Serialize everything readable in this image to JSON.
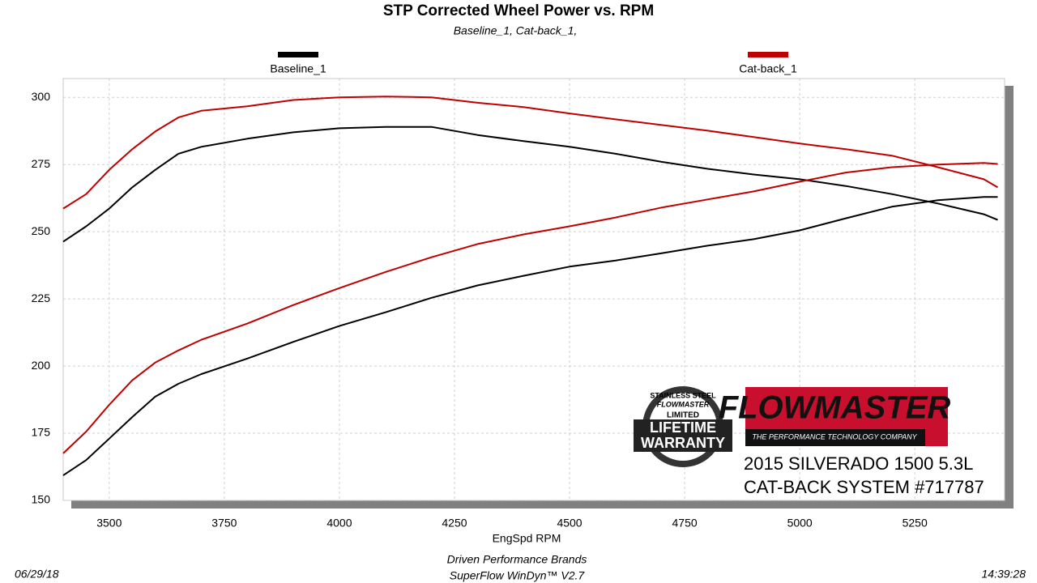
{
  "chart_data": {
    "type": "line",
    "title": "STP Corrected Wheel Power vs. RPM",
    "subtitle": "Baseline_1, Cat-back_1,",
    "x_label": "EngSpd  RPM",
    "x": [
      3400,
      3450,
      3500,
      3550,
      3600,
      3650,
      3700,
      3800,
      3900,
      4000,
      4100,
      4200,
      4300,
      4400,
      4500,
      4600,
      4700,
      4800,
      4900,
      5000,
      5100,
      5200,
      5300,
      5400,
      5430
    ],
    "series": [
      {
        "name": "Baseline_1",
        "color": "#000000",
        "curves": [
          [
            246.3,
            252,
            258.6,
            266.5,
            273,
            279,
            281.6,
            284.6,
            287,
            288.5,
            289,
            289,
            286,
            283.7,
            281.6,
            279,
            276,
            273.4,
            271.3,
            269.5,
            267,
            264,
            260.5,
            256.5,
            254.4
          ],
          [
            159.3,
            165,
            173,
            181,
            188.6,
            193.4,
            197,
            202.8,
            209,
            214.9,
            220,
            225.4,
            230,
            233.6,
            237,
            239.3,
            242,
            244.8,
            247.2,
            250.5,
            255,
            259.3,
            261.7,
            262.9,
            262.9
          ]
        ]
      },
      {
        "name": "Cat-back_1",
        "color": "#c00000",
        "curves": [
          [
            258.6,
            264,
            273,
            280.7,
            287.3,
            292.5,
            295,
            296.7,
            299,
            300,
            300.3,
            300,
            298,
            296.4,
            294,
            291.8,
            289.7,
            287.6,
            285.2,
            282.8,
            280.7,
            278.3,
            274,
            269.5,
            266.5
          ],
          [
            167.5,
            175.6,
            185.6,
            194.7,
            201.3,
            205.8,
            209.8,
            215.8,
            222.7,
            229,
            235,
            240.5,
            245.4,
            249,
            252,
            255.3,
            259,
            262,
            265,
            268.6,
            272,
            274,
            275,
            275.6,
            275.2
          ]
        ]
      }
    ],
    "xlim": [
      3400,
      5445
    ],
    "ylim": [
      150,
      307
    ],
    "xticks": [
      3500,
      3750,
      4000,
      4250,
      4500,
      4750,
      5000,
      5250
    ],
    "yticks": [
      150,
      175,
      200,
      225,
      250,
      275,
      300
    ],
    "grid": true,
    "badge": {
      "top": "STAINLESS STEEL",
      "brand": "FLOWMASTER",
      "middle": "LIMITED",
      "line1": "LIFETIME",
      "line2": "WARRANTY"
    },
    "logo": {
      "brand": "FLOWMASTER",
      "tagline": "THE PERFORMANCE TECHNOLOGY COMPANY"
    },
    "notes": [
      "2015 SILVERADO 1500 5.3L",
      "CAT-BACK SYSTEM #717787"
    ],
    "footer": {
      "date": "06/29/18",
      "company": "Driven Performance Brands",
      "software": "SuperFlow WinDyn™  V2.7",
      "time": "14:39:28"
    }
  }
}
